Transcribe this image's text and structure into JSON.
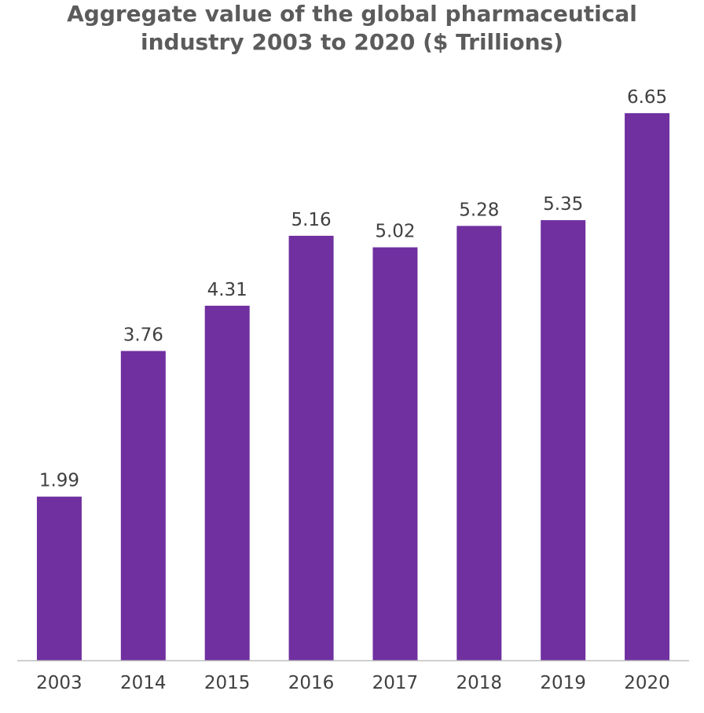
{
  "chart_data": {
    "type": "bar",
    "title_lines": [
      "Aggregate value of the global pharmaceutical",
      "industry 2003 to 2020 ($ Trillions)"
    ],
    "categories": [
      "2003",
      "2014",
      "2015",
      "2016",
      "2017",
      "2018",
      "2019",
      "2020"
    ],
    "values": [
      1.99,
      3.76,
      4.31,
      5.16,
      5.02,
      5.28,
      5.35,
      6.65
    ],
    "value_labels": [
      "1.99",
      "3.76",
      "4.31",
      "5.16",
      "5.02",
      "5.28",
      "5.35",
      "6.65"
    ],
    "ylim": [
      0,
      6.65
    ],
    "grid": false,
    "legend": "none",
    "bar_color": "#7030a0",
    "axis_color": "#bfbfbf"
  }
}
